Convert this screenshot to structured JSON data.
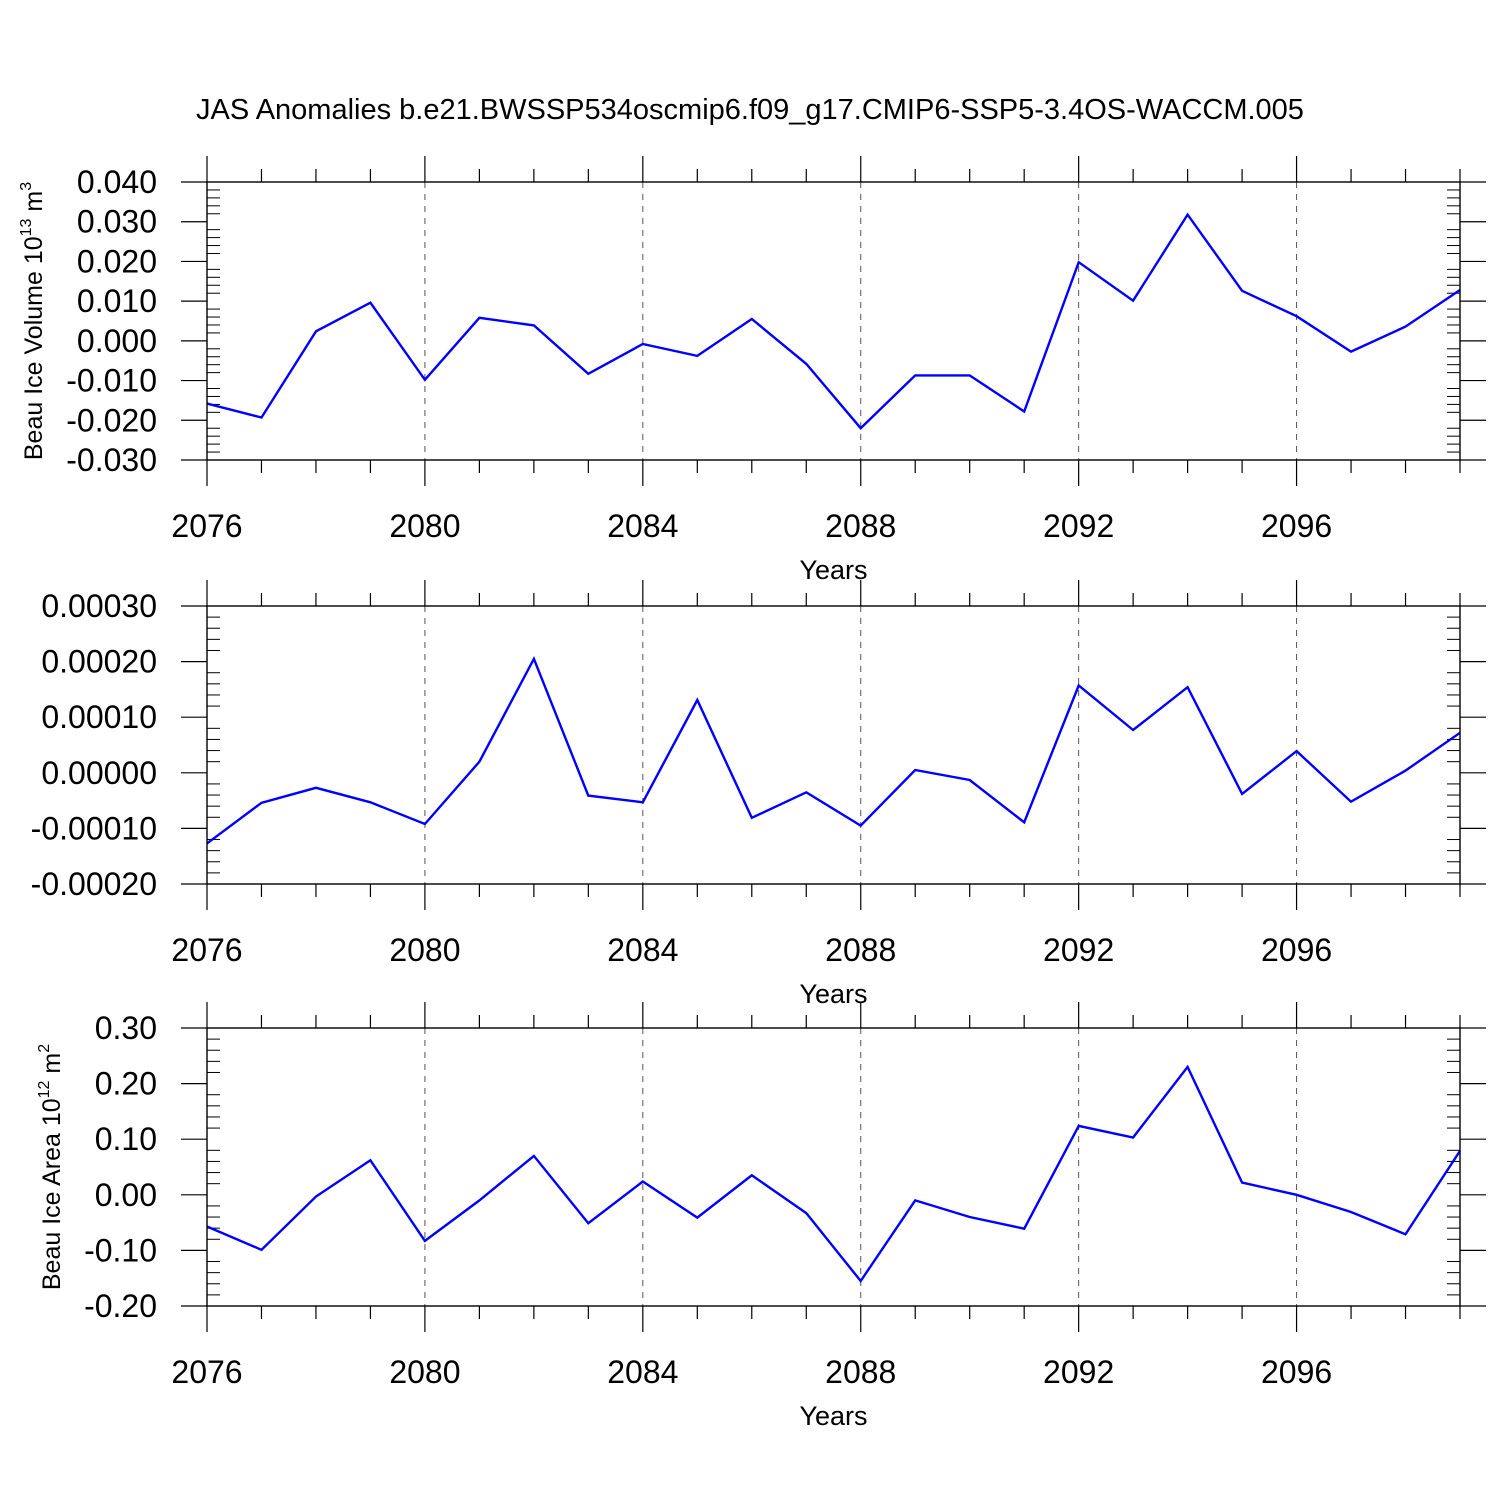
{
  "title": "JAS Anomalies b.e21.BWSSP534oscmip6.f09_g17.CMIP6-SSP5-3.4OS-WACCM.005",
  "colors": {
    "series": "#0000ff",
    "axis": "#000000",
    "grid": "#555555"
  },
  "chart_data": [
    {
      "type": "line",
      "title": "",
      "xlabel": "Years",
      "ylabel": {
        "prefix": "Beau Ice Volume 10",
        "exponent": "13",
        "unit": " m",
        "unit_exponent": "3"
      },
      "x": [
        2076,
        2077,
        2078,
        2079,
        2080,
        2081,
        2082,
        2083,
        2084,
        2085,
        2086,
        2087,
        2088,
        2089,
        2090,
        2091,
        2092,
        2093,
        2094,
        2095,
        2096,
        2097,
        2098,
        2099
      ],
      "series": [
        {
          "values": [
            -0.0158,
            -0.0193,
            0.0024,
            0.0096,
            -0.0098,
            0.0058,
            0.0039,
            -0.0083,
            -0.0008,
            -0.0038,
            0.0055,
            -0.0058,
            -0.022,
            -0.0087,
            -0.0087,
            -0.0178,
            0.0198,
            0.0101,
            0.0318,
            0.0126,
            0.0062,
            -0.0027,
            0.0036,
            0.0128
          ]
        }
      ],
      "xticks": [
        2076,
        2080,
        2084,
        2088,
        2092,
        2096
      ],
      "xlim": [
        2076,
        2099
      ],
      "ylim": [
        -0.03,
        0.04
      ],
      "yticks": [
        -0.03,
        -0.02,
        -0.01,
        0.0,
        0.01,
        0.02,
        0.03,
        0.04
      ],
      "ytick_labels": [
        "-0.030",
        "-0.020",
        "-0.010",
        "0.000",
        "0.010",
        "0.020",
        "0.030",
        "0.040"
      ],
      "grid": "dashed vertical at labeled years"
    },
    {
      "type": "line",
      "title": "",
      "xlabel": "Years",
      "x": [
        2076,
        2077,
        2078,
        2079,
        2080,
        2081,
        2082,
        2083,
        2084,
        2085,
        2086,
        2087,
        2088,
        2089,
        2090,
        2091,
        2092,
        2093,
        2094,
        2095,
        2096,
        2097,
        2098,
        2099
      ],
      "series": [
        {
          "values": [
            -0.000127,
            -5.4e-05,
            -2.7e-05,
            -5.3e-05,
            -9.2e-05,
            2e-05,
            0.000205,
            -4.1e-05,
            -5.3e-05,
            0.000131,
            -8.1e-05,
            -3.5e-05,
            -9.5e-05,
            5e-06,
            -1.3e-05,
            -8.9e-05,
            0.000157,
            7.7e-05,
            0.000154,
            -3.8e-05,
            3.9e-05,
            -5.2e-05,
            4e-06,
            7.2e-05
          ]
        }
      ],
      "xticks": [
        2076,
        2080,
        2084,
        2088,
        2092,
        2096
      ],
      "xlim": [
        2076,
        2099
      ],
      "ylim": [
        -0.0002,
        0.0003
      ],
      "yticks": [
        -0.0002,
        -0.0001,
        0.0,
        0.0001,
        0.0002,
        0.0003
      ],
      "ytick_labels": [
        "-0.00020",
        "-0.00010",
        "0.00000",
        "0.00010",
        "0.00020",
        "0.00030"
      ],
      "grid": "dashed vertical at labeled years"
    },
    {
      "type": "line",
      "title": "",
      "xlabel": "Years",
      "ylabel": {
        "prefix": "Beau Ice Area 10",
        "exponent": "12",
        "unit": " m",
        "unit_exponent": "2"
      },
      "x": [
        2076,
        2077,
        2078,
        2079,
        2080,
        2081,
        2082,
        2083,
        2084,
        2085,
        2086,
        2087,
        2088,
        2089,
        2090,
        2091,
        2092,
        2093,
        2094,
        2095,
        2096,
        2097,
        2098,
        2099
      ],
      "series": [
        {
          "values": [
            -0.057,
            -0.099,
            -0.003,
            0.062,
            -0.083,
            -0.01,
            0.07,
            -0.051,
            0.024,
            -0.041,
            0.035,
            -0.033,
            -0.155,
            -0.01,
            -0.04,
            -0.061,
            0.124,
            0.103,
            0.23,
            0.022,
            0.0,
            -0.031,
            -0.071,
            0.079
          ]
        }
      ],
      "xticks": [
        2076,
        2080,
        2084,
        2088,
        2092,
        2096
      ],
      "xlim": [
        2076,
        2099
      ],
      "ylim": [
        -0.2,
        0.3
      ],
      "yticks": [
        -0.2,
        -0.1,
        0.0,
        0.1,
        0.2,
        0.3
      ],
      "ytick_labels": [
        "-0.20",
        "-0.10",
        "0.00",
        "0.10",
        "0.20",
        "0.30"
      ],
      "grid": "dashed vertical at labeled years"
    }
  ]
}
